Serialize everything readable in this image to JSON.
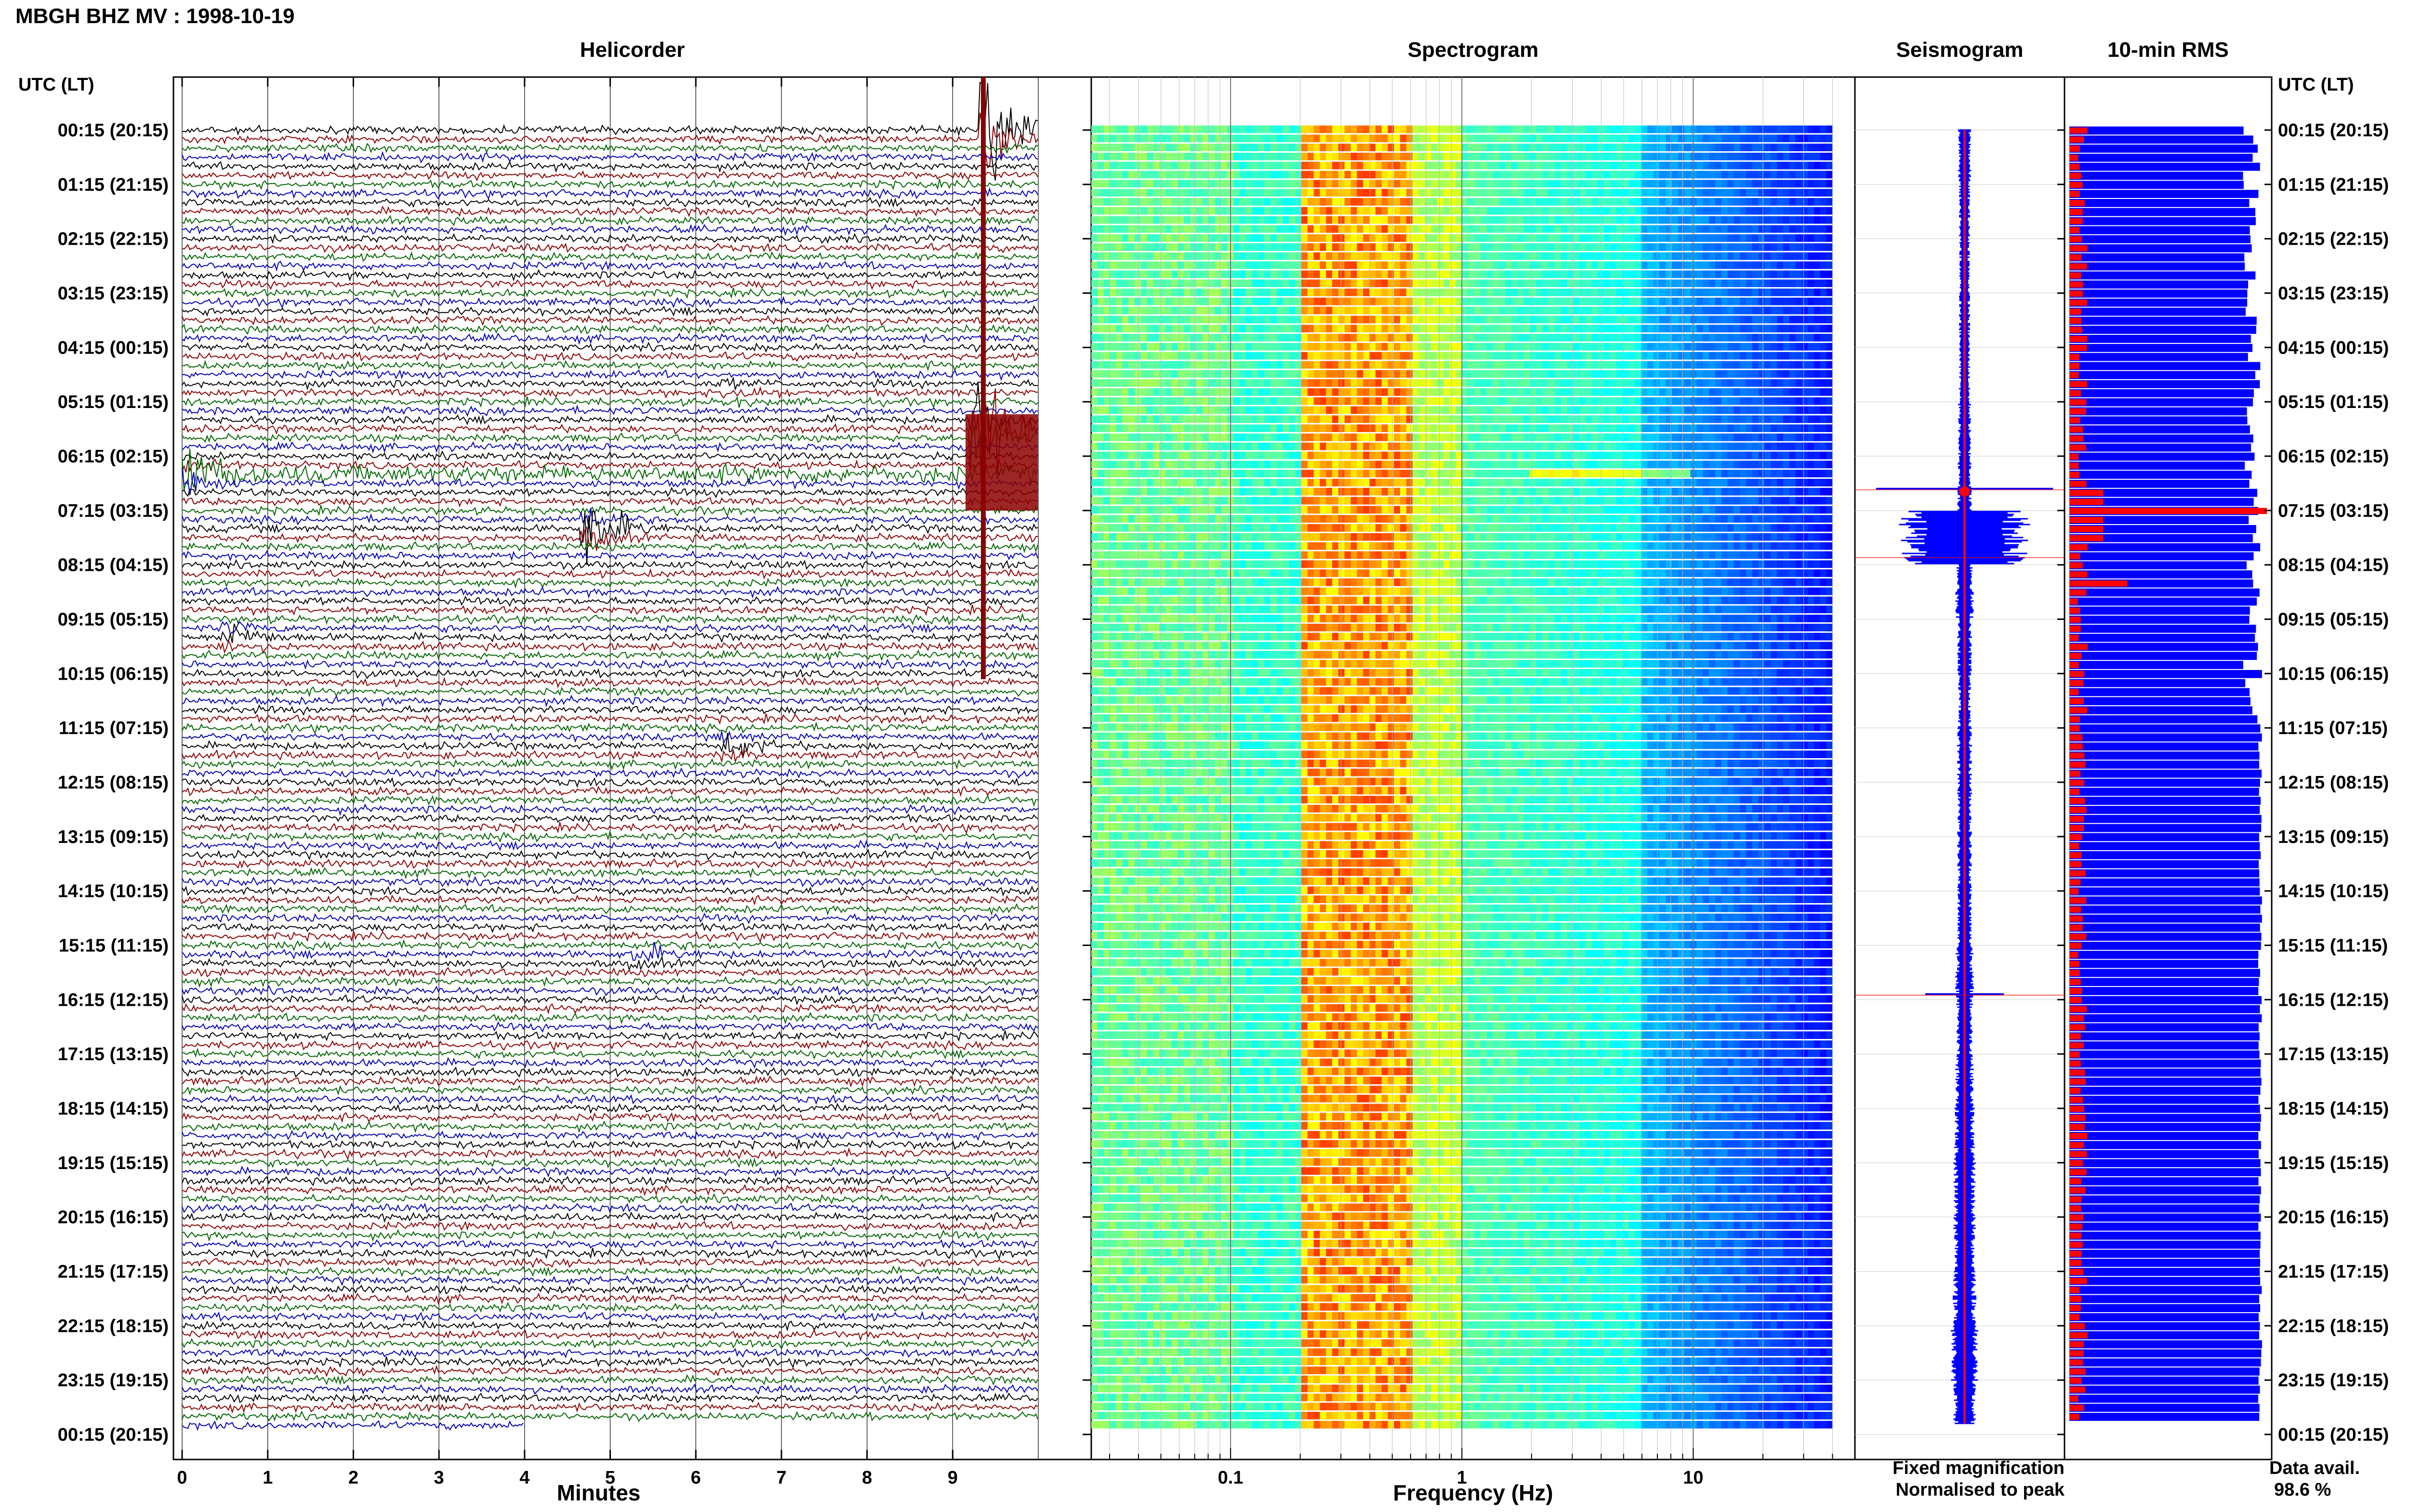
{
  "page": {
    "title": "MBGH BHZ MV : 1998-10-19",
    "utc_label_left": "UTC (LT)",
    "utc_label_right": "UTC (LT)",
    "data_avail_label": "Data avail.",
    "data_avail_value": "98.6 %"
  },
  "chart_data": [
    {
      "type": "line",
      "title": "Helicorder",
      "xlabel": "Minutes",
      "ylabel": "",
      "xlim": [
        0,
        10
      ],
      "x_ticks": [
        "0",
        "1",
        "2",
        "3",
        "4",
        "5",
        "6",
        "7",
        "8",
        "9"
      ],
      "row_labels": [
        "00:15 (20:15)",
        "01:15 (21:15)",
        "02:15 (22:15)",
        "03:15 (23:15)",
        "04:15 (00:15)",
        "05:15 (01:15)",
        "06:15 (02:15)",
        "07:15 (03:15)",
        "08:15 (04:15)",
        "09:15 (05:15)",
        "10:15 (06:15)",
        "11:15 (07:15)",
        "12:15 (08:15)",
        "13:15 (09:15)",
        "14:15 (10:15)",
        "15:15 (11:15)",
        "16:15 (12:15)",
        "17:15 (13:15)",
        "18:15 (14:15)",
        "19:15 (15:15)",
        "20:15 (16:15)",
        "21:15 (17:15)",
        "22:15 (18:15)",
        "23:15 (19:15)",
        "00:15 (20:15)"
      ],
      "trace_colors": [
        "#000000",
        "#8b0000",
        "#006400",
        "#0000b4"
      ],
      "rows_per_hour": 6,
      "data_end_minutes": 4.0,
      "events": [
        {
          "row": 0,
          "minute": 9.4,
          "amplitude": 8,
          "note": "large event clipped"
        },
        {
          "row": 33,
          "minute": 9.3,
          "amplitude": 9
        },
        {
          "row": 38,
          "minute": 0.0,
          "amplitude": 3.5,
          "note": "high-amplitude tremor row"
        },
        {
          "row": 44,
          "minute": 4.75,
          "amplitude": 4
        },
        {
          "row": 56,
          "minute": 0.55,
          "amplitude": 1.5
        },
        {
          "row": 68,
          "minute": 6.4,
          "amplitude": 1.2
        },
        {
          "row": 29,
          "minute": 6.4,
          "amplitude": 0.8
        },
        {
          "row": 91,
          "minute": 5.3,
          "amplitude": 1.2
        }
      ]
    },
    {
      "type": "heatmap",
      "title": "Spectrogram",
      "xlabel": "Frequency (Hz)",
      "x_scale": "log",
      "xlim": [
        0.025,
        50
      ],
      "x_ticks": [
        "0.1",
        "1",
        "10"
      ],
      "peak_band_hz": [
        0.2,
        0.55
      ],
      "high_cut_hz": 40,
      "colormap": "jet"
    },
    {
      "type": "line",
      "title": "Seismogram",
      "series": [
        {
          "name": "Fixed magnification",
          "color": "#0000ff"
        },
        {
          "name": "Normalised to peak",
          "color": "#ff0000"
        }
      ],
      "envelope_hourly": [
        0.35,
        0.3,
        0.3,
        0.3,
        0.3,
        0.35,
        0.4,
        3.6,
        0.5,
        0.4,
        0.35,
        0.4,
        0.4,
        0.4,
        0.4,
        0.5,
        0.45,
        0.5,
        0.55,
        0.6,
        0.6,
        0.65,
        0.75,
        0.6
      ],
      "spikes": [
        {
          "hour": 6.6,
          "value": 3.6
        },
        {
          "hour": 7.85,
          "value": 1.8
        },
        {
          "hour": 15.9,
          "value": 1.6
        }
      ]
    },
    {
      "type": "bar",
      "title": "10-min RMS",
      "series": [
        {
          "name": "Fixed magnification",
          "color": "#0000ff"
        },
        {
          "name": "Normalised to peak",
          "color": "#ff0000"
        }
      ],
      "normalised_peak_hour": 7.0,
      "normalised_secondary_hour": 8.3
    }
  ]
}
